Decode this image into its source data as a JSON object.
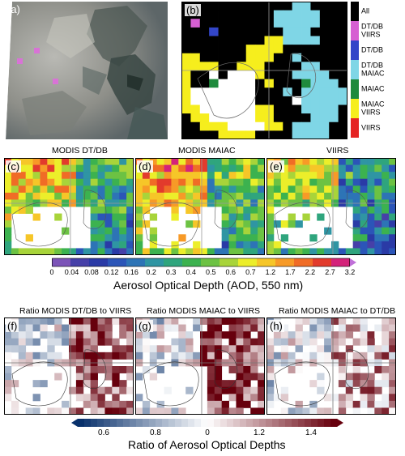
{
  "panels": {
    "a": {
      "letter": "(a)"
    },
    "b": {
      "letter": "(b)"
    },
    "c": {
      "letter": "(c)",
      "title": "MODIS DT/DB"
    },
    "d": {
      "letter": "(d)",
      "title": "MODIS MAIAC"
    },
    "e": {
      "letter": "(e)",
      "title": "VIIRS"
    },
    "f": {
      "letter": "(f)",
      "title": "Ratio MODIS DT/DB to VIIRS"
    },
    "g": {
      "letter": "(g)",
      "title": "Ratio MODIS MAIAC to VIIRS"
    },
    "h": {
      "letter": "(h)",
      "title": "Ratio MODIS MAIAC to DT/DB"
    }
  },
  "legend_b": [
    {
      "label": "All",
      "color": "#000000"
    },
    {
      "label": "DT/DB\nVIIRS",
      "color": "#d65fd2"
    },
    {
      "label": "DT/DB",
      "color": "#3346c8"
    },
    {
      "label": "DT/DB\nMAIAC",
      "color": "#7fd6e6"
    },
    {
      "label": "MAIAC",
      "color": "#1f8a3c"
    },
    {
      "label": "MAIAC\nVIIRS",
      "color": "#f6ee1d"
    },
    {
      "label": "VIIRS",
      "color": "#e52424"
    }
  ],
  "aod_colorbar": {
    "title": "Aerosol Optical Depth (AOD, 550 nm)",
    "ticks": [
      "0",
      "0.04",
      "0.08",
      "0.12",
      "0.16",
      "0.2",
      "0.3",
      "0.4",
      "0.5",
      "0.6",
      "0.7",
      "1.2",
      "1.7",
      "2.2",
      "2.7",
      "3.2"
    ],
    "colors": [
      "#7c54b8",
      "#4640a8",
      "#2a3aa6",
      "#2b55b8",
      "#2d74b6",
      "#2f95a3",
      "#2fa57d",
      "#3cb24f",
      "#6cc243",
      "#a8d43a",
      "#ecee2a",
      "#f6c628",
      "#f79a27",
      "#f06c26",
      "#e23b2c",
      "#d4237a"
    ]
  },
  "ratio_colorbar": {
    "title": "Ratio of Aerosol Optical Depths",
    "ticks": [
      "0.6",
      "0.8",
      "0",
      "1.2",
      "1.4"
    ],
    "min": 0.5,
    "max": 1.5,
    "low_color": "#08306b",
    "mid_color": "#ffffff",
    "high_color": "#67000d"
  }
}
